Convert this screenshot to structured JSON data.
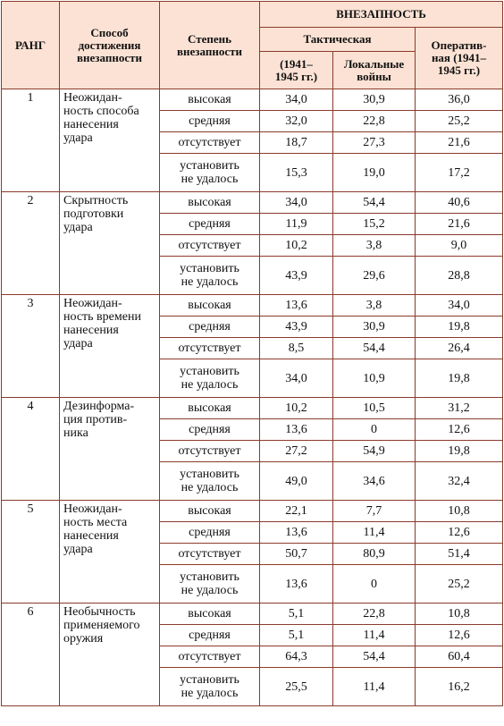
{
  "header": {
    "rank": "РАНГ",
    "method": "Способ\nдостижения\nвнезапности",
    "degree": "Степень\nвнезапности",
    "surprise": "ВНЕЗАПНОСТЬ",
    "tactical": "Тактическая",
    "tactical_1941": "(1941–\n1945 гг.)",
    "local_wars": "Локальные\nвойны",
    "operational": "Оператив-\nная (1941–\n1945 гг.)"
  },
  "groups": [
    {
      "rank": "1",
      "method": "Неожидан-\nность способа\nнанесения\nудара",
      "rows": [
        {
          "degree": "высокая",
          "values": [
            "34,0",
            "30,9",
            "36,0"
          ]
        },
        {
          "degree": "средняя",
          "values": [
            "32,0",
            "22,8",
            "25,2"
          ]
        },
        {
          "degree": "отсутствует",
          "values": [
            "18,7",
            "27,3",
            "21,6"
          ]
        },
        {
          "degree": "установить\nне удалось",
          "values": [
            "15,3",
            "19,0",
            "17,2"
          ]
        }
      ]
    },
    {
      "rank": "2",
      "method": "Скрытность\nподготовки\nудара",
      "rows": [
        {
          "degree": "высокая",
          "values": [
            "34,0",
            "54,4",
            "40,6"
          ]
        },
        {
          "degree": "средняя",
          "values": [
            "11,9",
            "15,2",
            "21,6"
          ]
        },
        {
          "degree": "отсутствует",
          "values": [
            "10,2",
            "3,8",
            "9,0"
          ]
        },
        {
          "degree": "установить\nне удалось",
          "values": [
            "43,9",
            "29,6",
            "28,8"
          ]
        }
      ]
    },
    {
      "rank": "3",
      "method": "Неожидан-\nность времени\nнанесения\nудара",
      "rows": [
        {
          "degree": "высокая",
          "values": [
            "13,6",
            "3,8",
            "34,0"
          ]
        },
        {
          "degree": "средняя",
          "values": [
            "43,9",
            "30,9",
            "19,8"
          ]
        },
        {
          "degree": "отсутствует",
          "values": [
            "8,5",
            "54,4",
            "26,4"
          ]
        },
        {
          "degree": "установить\nне удалось",
          "values": [
            "34,0",
            "10,9",
            "19,8"
          ]
        }
      ]
    },
    {
      "rank": "4",
      "method": "Дезинформа-\nция против-\nника",
      "rows": [
        {
          "degree": "высокая",
          "values": [
            "10,2",
            "10,5",
            "31,2"
          ]
        },
        {
          "degree": "средняя",
          "values": [
            "13,6",
            "0",
            "12,6"
          ]
        },
        {
          "degree": "отсутствует",
          "values": [
            "27,2",
            "54,9",
            "19,8"
          ]
        },
        {
          "degree": "установить\nне удалось",
          "values": [
            "49,0",
            "34,6",
            "32,4"
          ]
        }
      ]
    },
    {
      "rank": "5",
      "method": "Неожидан-\nность места\nнанесения\nудара",
      "rows": [
        {
          "degree": "высокая",
          "values": [
            "22,1",
            "7,7",
            "10,8"
          ]
        },
        {
          "degree": "средняя",
          "values": [
            "13,6",
            "11,4",
            "12,6"
          ]
        },
        {
          "degree": "отсутствует",
          "values": [
            "50,7",
            "80,9",
            "51,4"
          ]
        },
        {
          "degree": "установить\nне удалось",
          "values": [
            "13,6",
            "0",
            "25,2"
          ]
        }
      ]
    },
    {
      "rank": "6",
      "method": "Необычность\nприменяемого\nоружия",
      "rows": [
        {
          "degree": "высокая",
          "values": [
            "5,1",
            "22,8",
            "10,8"
          ]
        },
        {
          "degree": "средняя",
          "values": [
            "5,1",
            "11,4",
            "12,6"
          ]
        },
        {
          "degree": "отсутствует",
          "values": [
            "64,3",
            "54,4",
            "60,4"
          ]
        },
        {
          "degree": "установить\nне удалось",
          "values": [
            "25,5",
            "11,4",
            "16,2"
          ]
        }
      ]
    }
  ]
}
